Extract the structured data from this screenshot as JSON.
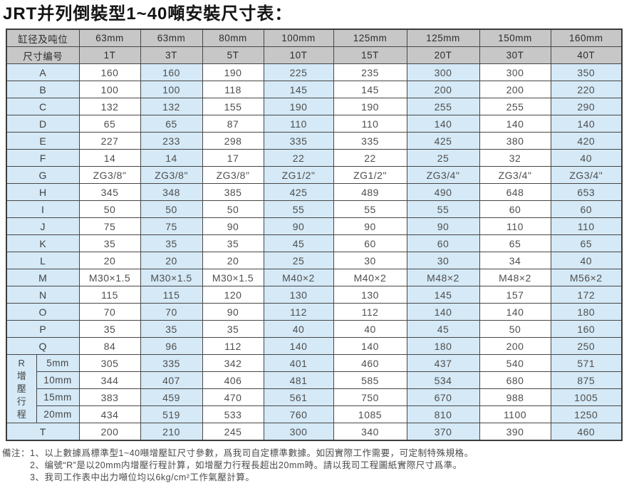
{
  "title": "JRT并列倒裝型1~40噸安裝尺寸表：",
  "table": {
    "header_rows": [
      {
        "label": "缸径及吨位",
        "values": [
          "63mm",
          "63mm",
          "80mm",
          "100mm",
          "125mm",
          "125mm",
          "150mm",
          "160mm"
        ]
      },
      {
        "label": "尺寸编号",
        "values": [
          "1T",
          "3T",
          "5T",
          "10T",
          "15T",
          "20T",
          "30T",
          "40T"
        ]
      }
    ],
    "rows": [
      {
        "label": "A",
        "values": [
          "160",
          "160",
          "190",
          "225",
          "235",
          "300",
          "300",
          "350"
        ]
      },
      {
        "label": "B",
        "values": [
          "100",
          "100",
          "118",
          "145",
          "145",
          "200",
          "200",
          "220"
        ]
      },
      {
        "label": "C",
        "values": [
          "132",
          "132",
          "155",
          "190",
          "190",
          "255",
          "255",
          "290"
        ]
      },
      {
        "label": "D",
        "values": [
          "65",
          "65",
          "87",
          "110",
          "110",
          "140",
          "140",
          "140"
        ]
      },
      {
        "label": "E",
        "values": [
          "227",
          "233",
          "298",
          "335",
          "335",
          "425",
          "380",
          "420"
        ]
      },
      {
        "label": "F",
        "values": [
          "14",
          "14",
          "17",
          "22",
          "22",
          "25",
          "32",
          "40"
        ]
      },
      {
        "label": "G",
        "values": [
          "ZG3/8\"",
          "ZG3/8\"",
          "ZG3/8\"",
          "ZG1/2\"",
          "ZG1/2\"",
          "ZG3/4\"",
          "ZG3/4\"",
          "ZG3/4\""
        ]
      },
      {
        "label": "H",
        "values": [
          "345",
          "348",
          "385",
          "425",
          "489",
          "490",
          "648",
          "653"
        ]
      },
      {
        "label": "I",
        "values": [
          "50",
          "50",
          "50",
          "55",
          "55",
          "55",
          "60",
          "60"
        ]
      },
      {
        "label": "J",
        "values": [
          "75",
          "75",
          "90",
          "90",
          "90",
          "90",
          "110",
          "110"
        ]
      },
      {
        "label": "K",
        "values": [
          "35",
          "35",
          "35",
          "45",
          "60",
          "60",
          "65",
          "65"
        ]
      },
      {
        "label": "L",
        "values": [
          "20",
          "20",
          "20",
          "25",
          "30",
          "30",
          "34",
          "40"
        ]
      },
      {
        "label": "M",
        "values": [
          "M30×1.5",
          "M30×1.5",
          "M30×1.5",
          "M40×2",
          "M40×2",
          "M48×2",
          "M48×2",
          "M56×2"
        ]
      },
      {
        "label": "N",
        "values": [
          "115",
          "115",
          "120",
          "130",
          "130",
          "145",
          "157",
          "172"
        ]
      },
      {
        "label": "O",
        "values": [
          "70",
          "70",
          "90",
          "112",
          "112",
          "140",
          "140",
          "180"
        ]
      },
      {
        "label": "P",
        "values": [
          "35",
          "35",
          "35",
          "40",
          "40",
          "45",
          "50",
          "160"
        ]
      },
      {
        "label": "Q",
        "values": [
          "84",
          "96",
          "112",
          "140",
          "140",
          "180",
          "200",
          "250"
        ]
      }
    ],
    "r_section": {
      "label": "R增壓行程",
      "rows": [
        {
          "label": "5mm",
          "values": [
            "305",
            "335",
            "342",
            "401",
            "460",
            "437",
            "540",
            "571"
          ]
        },
        {
          "label": "10mm",
          "values": [
            "344",
            "407",
            "406",
            "481",
            "585",
            "534",
            "680",
            "875"
          ]
        },
        {
          "label": "15mm",
          "values": [
            "383",
            "459",
            "470",
            "561",
            "750",
            "670",
            "988",
            "1005"
          ]
        },
        {
          "label": "20mm",
          "values": [
            "434",
            "519",
            "533",
            "760",
            "1085",
            "810",
            "1100",
            "1250"
          ]
        }
      ]
    },
    "t_row": {
      "label": "T",
      "values": [
        "200",
        "210",
        "245",
        "300",
        "340",
        "370",
        "390",
        "460"
      ]
    }
  },
  "notes": {
    "label": "備注：",
    "items": [
      "1、以上數據爲標準型1~40噸增壓缸尺寸參數，爲我司自定標準數據。如因實際工作需要，可定制特殊規格。",
      "2、编號“R”是以20mm内增壓行程計算，如增壓力行程長超出20mm時。請以我司工程圖紙實際尺寸爲準。",
      "3、我司工作表中出力噸位均以6kg/cm²工作氣壓計算。"
    ]
  },
  "colors": {
    "header_bg": "#c7c7c7",
    "band_blue": "#d5e9f6",
    "border": "#474747",
    "title_text": "#141414"
  }
}
